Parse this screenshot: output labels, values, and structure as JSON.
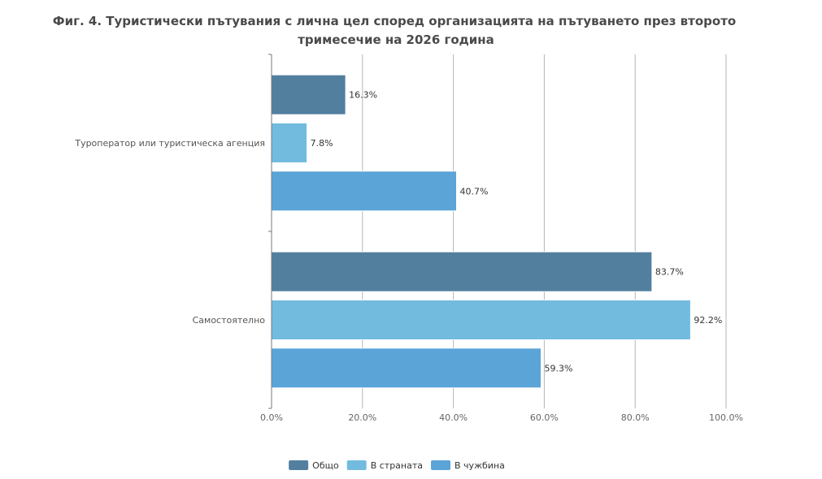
{
  "chart_data": {
    "type": "bar",
    "orientation": "horizontal",
    "title_lines": [
      "Фиг. 4. Туристически пътувания с лична цел според организацията на пътуването през второто",
      "тримесечие на 2026 година"
    ],
    "categories": [
      "Туроператор или туристическа агенция",
      "Самостоятелно"
    ],
    "series": [
      {
        "name": "Общо",
        "color": "#527f9e",
        "values": [
          16.3,
          83.7
        ]
      },
      {
        "name": "В страната",
        "color": "#72bbdf",
        "values": [
          7.8,
          92.2
        ]
      },
      {
        "name": "В чужбина",
        "color": "#5ba4d8",
        "values": [
          40.7,
          59.3
        ]
      }
    ],
    "data_labels": [
      [
        "16.3%",
        "83.7%"
      ],
      [
        "7.8%",
        "92.2%"
      ],
      [
        "40.7%",
        "59.3%"
      ]
    ],
    "x_ticks": [
      0,
      20,
      40,
      60,
      80,
      100
    ],
    "x_tick_labels": [
      "0.0%",
      "20.0%",
      "40.0%",
      "60.0%",
      "80.0%",
      "100.0%"
    ],
    "xlim": [
      0,
      100
    ],
    "grid": true,
    "legend_position": "bottom"
  }
}
